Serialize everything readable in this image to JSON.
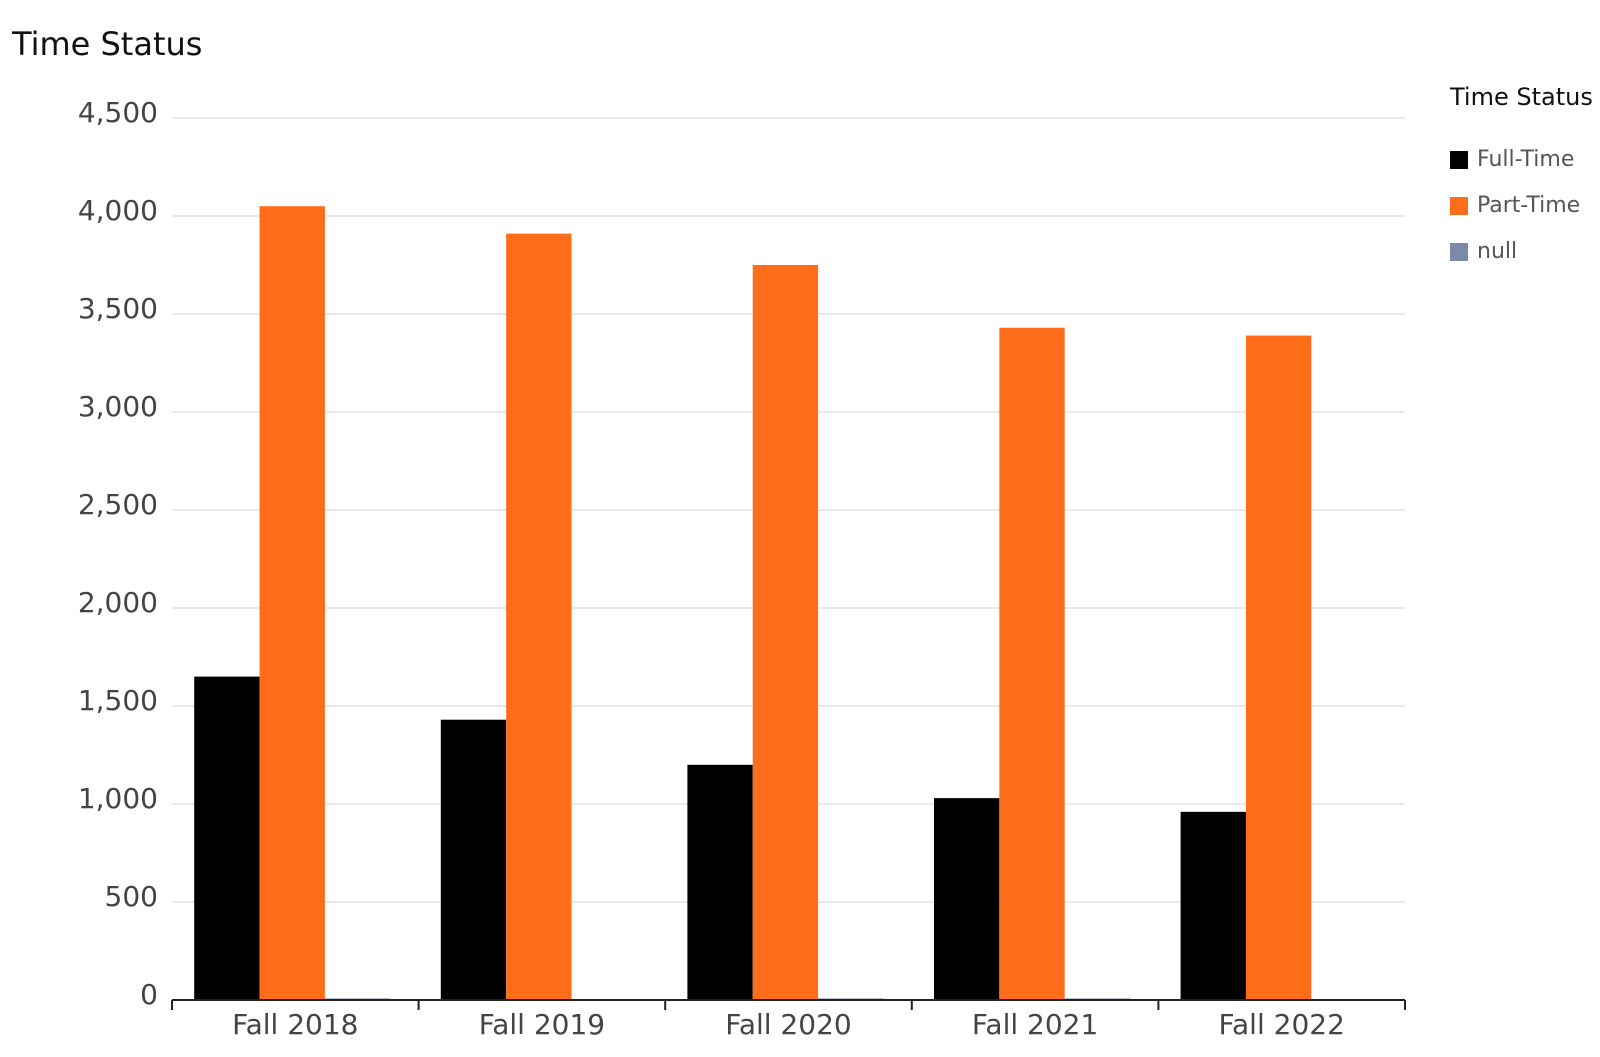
{
  "chart_data": {
    "type": "bar",
    "title": "Time Status",
    "legend_title": "Time Status",
    "categories": [
      "Fall 2018",
      "Fall 2019",
      "Fall 2020",
      "Fall 2021",
      "Fall 2022"
    ],
    "series": [
      {
        "name": "Full-Time",
        "color": "#000000",
        "values": [
          1650,
          1430,
          1200,
          1030,
          960
        ]
      },
      {
        "name": "Part-Time",
        "color": "#ff6d1a",
        "values": [
          4050,
          3910,
          3750,
          3430,
          3390
        ]
      },
      {
        "name": "null",
        "color": "#7b8aa8",
        "values": [
          8,
          0,
          8,
          8,
          0
        ]
      }
    ],
    "ylim": [
      0,
      4500
    ],
    "yticks": [
      0,
      500,
      {
        "value": 1000,
        "label": "1,000"
      },
      {
        "value": 1500,
        "label": "1,500"
      },
      {
        "value": 2000,
        "label": "2,000"
      },
      {
        "value": 2500,
        "label": "2,500"
      },
      {
        "value": 3000,
        "label": "3,000"
      },
      {
        "value": 3500,
        "label": "3,500"
      },
      {
        "value": 4000,
        "label": "4,000"
      },
      {
        "value": 4500,
        "label": "4,500"
      }
    ],
    "grid": true,
    "legend": "right"
  }
}
